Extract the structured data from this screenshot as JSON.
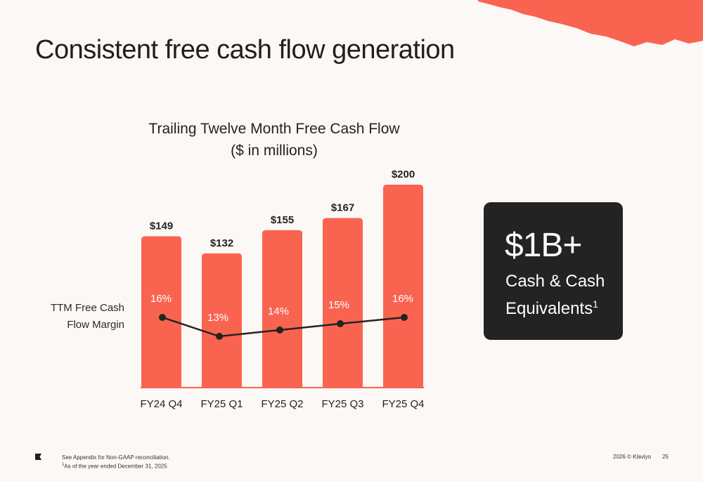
{
  "slide": {
    "title": "Consistent free cash flow generation",
    "page_number": "25",
    "copyright": "2026 © Klaviyo"
  },
  "footnotes": {
    "line1": "See Appendix for Non-GAAP reconciliation.",
    "line2_marker": "1",
    "line2_text": "As of the year ended December 31, 2025"
  },
  "callout": {
    "value": "$1B+",
    "line1": "Cash & Cash",
    "line2": "Equivalents",
    "marker": "1"
  },
  "colors": {
    "accent": "#f96451",
    "dark": "#232323",
    "background": "#fcf8f5"
  },
  "chart_data": {
    "type": "bar",
    "title_line1": "Trailing Twelve Month Free Cash Flow",
    "title_line2": "($ in millions)",
    "categories": [
      "FY24 Q4",
      "FY25 Q1",
      "FY25 Q2",
      "FY25 Q3",
      "FY25 Q4"
    ],
    "series": [
      {
        "values": [
          149,
          132,
          155,
          167,
          200
        ],
        "value_labels": [
          "$149",
          "$132",
          "$155",
          "$167",
          "$200"
        ]
      },
      {
        "name": "TTM Free Cash Flow Margin",
        "type": "line",
        "values": [
          16,
          13,
          14,
          15,
          16
        ],
        "value_labels": [
          "16%",
          "13%",
          "14%",
          "15%",
          "16%"
        ]
      }
    ],
    "margin_label_line1": "TTM Free Cash",
    "margin_label_line2": "Flow Margin",
    "grid": false
  }
}
